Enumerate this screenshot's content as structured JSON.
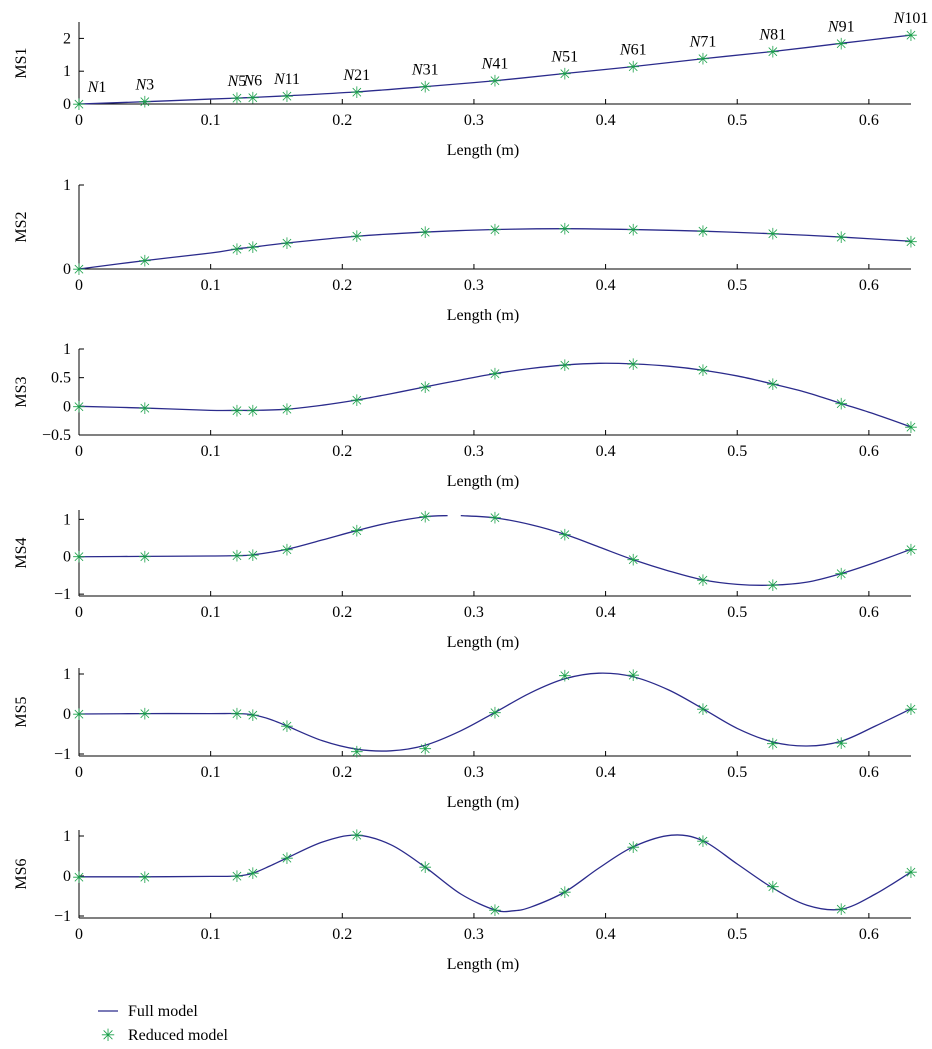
{
  "colors": {
    "full_model_line": "#2b2b8c",
    "reduced_model_marker": "#1aa04a",
    "axis": "#000000"
  },
  "legend": {
    "full_label": "Full model",
    "reduced_label": "Reduced model"
  },
  "chart_data": [
    {
      "type": "line",
      "ylabel": "MS1",
      "xlabel": "Length (m)",
      "xlim": [
        0,
        0.632
      ],
      "ylim": [
        0,
        2.5
      ],
      "xticks": [
        "0",
        "0.1",
        "0.2",
        "0.3",
        "0.4",
        "0.5",
        "0.6"
      ],
      "yticks": [
        "0",
        "1",
        "2"
      ],
      "node_labels": [
        {
          "prefix": "N",
          "num": "1",
          "x": 0.0,
          "y": 0.0
        },
        {
          "prefix": "N",
          "num": "3",
          "x": 0.05,
          "y": 0.07
        },
        {
          "prefix": "N",
          "num": "5",
          "x": 0.12,
          "y": 0.18
        },
        {
          "prefix": "N",
          "num": "6",
          "x": 0.132,
          "y": 0.2
        },
        {
          "prefix": "N",
          "num": "11",
          "x": 0.158,
          "y": 0.25
        },
        {
          "prefix": "N",
          "num": "21",
          "x": 0.211,
          "y": 0.37
        },
        {
          "prefix": "N",
          "num": "31",
          "x": 0.263,
          "y": 0.53
        },
        {
          "prefix": "N",
          "num": "41",
          "x": 0.316,
          "y": 0.71
        },
        {
          "prefix": "N",
          "num": "51",
          "x": 0.369,
          "y": 0.93
        },
        {
          "prefix": "N",
          "num": "61",
          "x": 0.421,
          "y": 1.14
        },
        {
          "prefix": "N",
          "num": "71",
          "x": 0.474,
          "y": 1.38
        },
        {
          "prefix": "N",
          "num": "81",
          "x": 0.527,
          "y": 1.6
        },
        {
          "prefix": "N",
          "num": "91",
          "x": 0.579,
          "y": 1.85
        },
        {
          "prefix": "N",
          "num": "101",
          "x": 0.632,
          "y": 2.1
        }
      ],
      "series": [
        {
          "name": "Full model",
          "style": "line",
          "x": [
            0,
            0.05,
            0.1,
            0.12,
            0.132,
            0.158,
            0.211,
            0.263,
            0.316,
            0.369,
            0.421,
            0.474,
            0.527,
            0.579,
            0.632
          ],
          "y": [
            0,
            0.07,
            0.15,
            0.18,
            0.2,
            0.25,
            0.37,
            0.53,
            0.71,
            0.93,
            1.14,
            1.38,
            1.6,
            1.85,
            2.1
          ]
        },
        {
          "name": "Reduced model",
          "style": "marker",
          "x": [
            0,
            0.05,
            0.12,
            0.132,
            0.158,
            0.211,
            0.263,
            0.316,
            0.369,
            0.421,
            0.474,
            0.527,
            0.579,
            0.632
          ],
          "y": [
            0,
            0.07,
            0.18,
            0.2,
            0.25,
            0.37,
            0.53,
            0.71,
            0.93,
            1.14,
            1.38,
            1.6,
            1.85,
            2.1
          ]
        }
      ]
    },
    {
      "type": "line",
      "ylabel": "MS2",
      "xlabel": "Length (m)",
      "xlim": [
        0,
        0.632
      ],
      "ylim": [
        0,
        1
      ],
      "xticks": [
        "0",
        "0.1",
        "0.2",
        "0.3",
        "0.4",
        "0.5",
        "0.6"
      ],
      "yticks": [
        "0",
        "1"
      ],
      "series": [
        {
          "name": "Full model",
          "style": "line",
          "x": [
            0,
            0.05,
            0.1,
            0.12,
            0.132,
            0.158,
            0.211,
            0.263,
            0.316,
            0.369,
            0.421,
            0.474,
            0.527,
            0.579,
            0.632
          ],
          "y": [
            0,
            0.1,
            0.19,
            0.24,
            0.26,
            0.31,
            0.39,
            0.44,
            0.47,
            0.48,
            0.47,
            0.45,
            0.42,
            0.38,
            0.33
          ]
        },
        {
          "name": "Reduced model",
          "style": "marker",
          "x": [
            0,
            0.05,
            0.12,
            0.132,
            0.158,
            0.211,
            0.263,
            0.316,
            0.369,
            0.421,
            0.474,
            0.527,
            0.579,
            0.632
          ],
          "y": [
            0,
            0.1,
            0.24,
            0.26,
            0.31,
            0.39,
            0.44,
            0.47,
            0.48,
            0.47,
            0.45,
            0.42,
            0.38,
            0.33
          ]
        }
      ]
    },
    {
      "type": "line",
      "ylabel": "MS3",
      "xlabel": "Length (m)",
      "xlim": [
        0,
        0.632
      ],
      "ylim": [
        -0.5,
        1
      ],
      "xticks": [
        "0",
        "0.1",
        "0.2",
        "0.3",
        "0.4",
        "0.5",
        "0.6"
      ],
      "yticks": [
        "−0.5",
        "0",
        "0.5",
        "1"
      ],
      "series": [
        {
          "name": "Full model",
          "style": "line",
          "x": [
            0,
            0.05,
            0.1,
            0.12,
            0.132,
            0.158,
            0.185,
            0.211,
            0.237,
            0.263,
            0.29,
            0.316,
            0.343,
            0.369,
            0.395,
            0.421,
            0.448,
            0.474,
            0.5,
            0.527,
            0.553,
            0.579,
            0.605,
            0.632
          ],
          "y": [
            0,
            -0.03,
            -0.07,
            -0.07,
            -0.07,
            -0.05,
            0.02,
            0.11,
            0.22,
            0.34,
            0.46,
            0.57,
            0.66,
            0.72,
            0.75,
            0.74,
            0.7,
            0.63,
            0.53,
            0.39,
            0.24,
            0.05,
            -0.14,
            -0.36
          ]
        },
        {
          "name": "Reduced model",
          "style": "marker",
          "x": [
            0,
            0.05,
            0.12,
            0.132,
            0.158,
            0.211,
            0.263,
            0.316,
            0.369,
            0.421,
            0.474,
            0.527,
            0.579,
            0.632
          ],
          "y": [
            0,
            -0.03,
            -0.07,
            -0.07,
            -0.05,
            0.11,
            0.34,
            0.57,
            0.72,
            0.74,
            0.63,
            0.39,
            0.05,
            -0.36
          ]
        }
      ]
    },
    {
      "type": "line",
      "ylabel": "MS4",
      "xlabel": "Length (m)",
      "xlim": [
        0,
        0.632
      ],
      "ylim": [
        -1.05,
        1.25
      ],
      "xticks": [
        "0",
        "0.1",
        "0.2",
        "0.3",
        "0.4",
        "0.5",
        "0.6"
      ],
      "yticks": [
        "−1",
        "0",
        "1"
      ],
      "series": [
        {
          "name": "Full model",
          "style": "line",
          "x": [
            0,
            0.05,
            0.1,
            0.12,
            0.132,
            0.158,
            0.185,
            0.211,
            0.237,
            0.263,
            0.28
          ],
          "y": [
            0,
            0.01,
            0.02,
            0.03,
            0.05,
            0.2,
            0.45,
            0.7,
            0.92,
            1.07,
            1.1
          ]
        },
        {
          "name": "Full model",
          "style": "line",
          "x": [
            0.29,
            0.316,
            0.343,
            0.369,
            0.395,
            0.421,
            0.448,
            0.474,
            0.5,
            0.527,
            0.553,
            0.579,
            0.605,
            0.632
          ],
          "y": [
            1.1,
            1.04,
            0.86,
            0.6,
            0.26,
            -0.08,
            -0.38,
            -0.62,
            -0.74,
            -0.76,
            -0.68,
            -0.45,
            -0.15,
            0.2
          ]
        },
        {
          "name": "Reduced model",
          "style": "marker",
          "x": [
            0,
            0.05,
            0.12,
            0.132,
            0.158,
            0.211,
            0.263,
            0.316,
            0.369,
            0.421,
            0.474,
            0.527,
            0.579,
            0.632
          ],
          "y": [
            0,
            0.01,
            0.03,
            0.05,
            0.2,
            0.7,
            1.07,
            1.05,
            0.6,
            -0.08,
            -0.62,
            -0.76,
            -0.45,
            0.2
          ]
        }
      ]
    },
    {
      "type": "line",
      "ylabel": "MS5",
      "xlabel": "Length (m)",
      "xlim": [
        0,
        0.632
      ],
      "ylim": [
        -1.05,
        1.15
      ],
      "xticks": [
        "0",
        "0.1",
        "0.2",
        "0.3",
        "0.4",
        "0.5",
        "0.6"
      ],
      "yticks": [
        "−1",
        "0",
        "1"
      ],
      "series": [
        {
          "name": "Full model",
          "style": "line",
          "x": [
            0,
            0.05,
            0.1,
            0.12,
            0.132,
            0.145,
            0.158,
            0.185,
            0.211,
            0.237,
            0.263,
            0.29,
            0.316,
            0.343,
            0.369,
            0.395,
            0.421,
            0.448,
            0.474,
            0.5,
            0.527,
            0.553,
            0.579,
            0.605,
            0.632
          ],
          "y": [
            0,
            0.01,
            0.01,
            0.01,
            -0.02,
            -0.13,
            -0.3,
            -0.67,
            -0.88,
            -0.92,
            -0.78,
            -0.42,
            0.04,
            0.53,
            0.88,
            1.02,
            0.93,
            0.6,
            0.13,
            -0.36,
            -0.7,
            -0.8,
            -0.68,
            -0.3,
            0.13
          ]
        },
        {
          "name": "Reduced model",
          "style": "marker",
          "x": [
            0,
            0.05,
            0.12,
            0.132,
            0.158,
            0.211,
            0.263,
            0.316,
            0.369,
            0.421,
            0.474,
            0.527,
            0.579,
            0.632
          ],
          "y": [
            0,
            0.01,
            0.01,
            -0.02,
            -0.3,
            -0.94,
            -0.86,
            0.04,
            0.96,
            0.98,
            0.13,
            -0.74,
            -0.72,
            0.13
          ]
        }
      ]
    },
    {
      "type": "line",
      "ylabel": "MS6",
      "xlabel": "Length (m)",
      "xlim": [
        0,
        0.632
      ],
      "ylim": [
        -1.05,
        1.15
      ],
      "xticks": [
        "0",
        "0.1",
        "0.2",
        "0.3",
        "0.4",
        "0.5",
        "0.6"
      ],
      "yticks": [
        "−1",
        "0",
        "1"
      ],
      "series": [
        {
          "name": "Full model",
          "style": "line",
          "x": [
            0,
            0.05,
            0.1,
            0.12,
            0.132,
            0.145,
            0.158,
            0.185,
            0.211,
            0.237,
            0.263,
            0.29,
            0.316,
            0.33,
            0.343,
            0.369,
            0.395,
            0.421,
            0.45,
            0.474,
            0.5,
            0.527,
            0.553,
            0.579,
            0.605,
            0.632
          ],
          "y": [
            -0.02,
            -0.02,
            -0.01,
            0.0,
            0.07,
            0.25,
            0.45,
            0.85,
            1.02,
            0.78,
            0.22,
            -0.45,
            -0.85,
            -0.87,
            -0.78,
            -0.4,
            0.2,
            0.73,
            1.02,
            0.88,
            0.3,
            -0.3,
            -0.73,
            -0.83,
            -0.45,
            0.1
          ]
        },
        {
          "name": "Reduced model",
          "style": "marker",
          "x": [
            0,
            0.05,
            0.12,
            0.132,
            0.158,
            0.211,
            0.263,
            0.316,
            0.369,
            0.421,
            0.474,
            0.527,
            0.579,
            0.632
          ],
          "y": [
            -0.02,
            -0.02,
            0.0,
            0.07,
            0.45,
            1.02,
            0.22,
            -0.85,
            -0.4,
            0.73,
            0.88,
            -0.26,
            -0.83,
            0.1
          ]
        }
      ]
    }
  ]
}
